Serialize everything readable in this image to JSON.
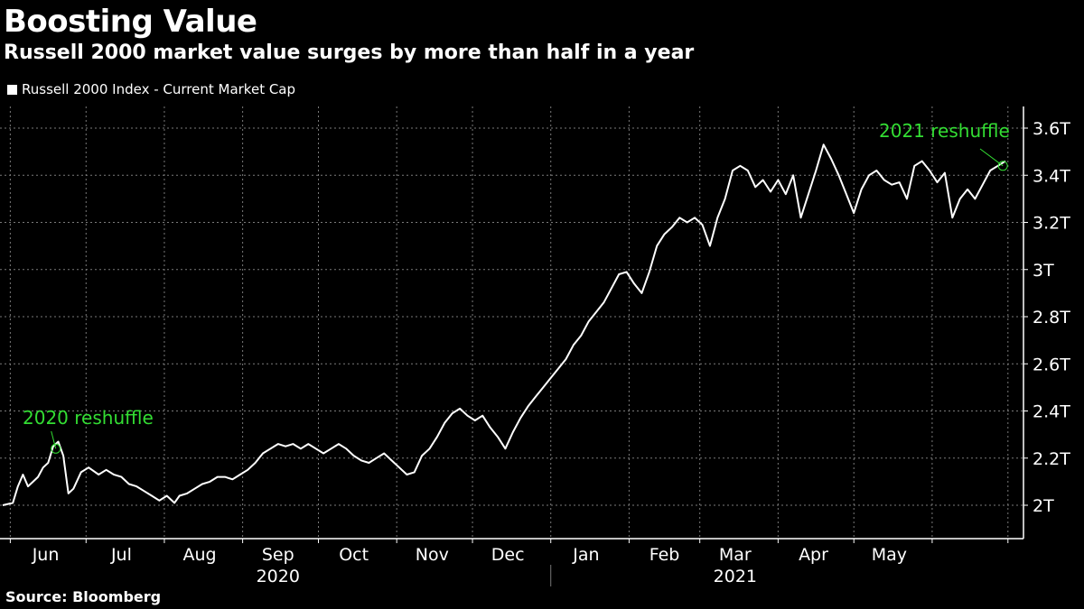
{
  "title": "Boosting Value",
  "subtitle": "Russell 2000 market value surges by more than half in a year",
  "source": "Source: Bloomberg",
  "colors": {
    "background": "#000000",
    "line": "#ffffff",
    "annotation": "#33dd33",
    "grid": "#7a7a7a"
  },
  "chart_data": {
    "type": "line",
    "title": "Boosting Value",
    "subtitle": "Russell 2000 market value surges by more than half in a year",
    "xlabel": "",
    "ylabel": "",
    "ylim": [
      1.95,
      3.65
    ],
    "y_ticks": [
      2.0,
      2.2,
      2.4,
      2.6,
      2.8,
      3.0,
      3.2,
      3.4,
      3.6
    ],
    "y_tick_labels": [
      "2T",
      "2.2T",
      "2.4T",
      "2.6T",
      "2.8T",
      "3T",
      "3.2T",
      "3.4T",
      "3.6T"
    ],
    "y_unit": "T",
    "x_ticks": [
      {
        "date": "2020-05-20",
        "label": "May"
      },
      {
        "date": "2020-06-15",
        "label": "Jun"
      },
      {
        "date": "2020-07-15",
        "label": "Jul"
      },
      {
        "date": "2020-08-15",
        "label": "Aug"
      },
      {
        "date": "2020-09-15",
        "label": "Sep"
      },
      {
        "date": "2020-10-15",
        "label": "Oct"
      },
      {
        "date": "2020-11-15",
        "label": "Nov"
      },
      {
        "date": "2020-12-15",
        "label": "Dec"
      },
      {
        "date": "2021-01-15",
        "label": "Jan"
      },
      {
        "date": "2021-02-15",
        "label": "Feb"
      },
      {
        "date": "2021-03-15",
        "label": "Mar"
      },
      {
        "date": "2021-04-15",
        "label": "Apr"
      },
      {
        "date": "2021-05-15",
        "label": "May"
      }
    ],
    "years": [
      {
        "label": "2020",
        "date": "2020-09-15"
      },
      {
        "label": "2021",
        "date": "2021-03-15"
      }
    ],
    "grid": true,
    "legend": "top-left",
    "series": [
      {
        "name": "Russell 2000 Index - Current Market Cap",
        "color": "#ffffff",
        "points": [
          [
            "2020-05-29",
            2.0
          ],
          [
            "2020-06-02",
            2.01
          ],
          [
            "2020-06-04",
            2.08
          ],
          [
            "2020-06-06",
            2.13
          ],
          [
            "2020-06-08",
            2.08
          ],
          [
            "2020-06-10",
            2.1
          ],
          [
            "2020-06-12",
            2.12
          ],
          [
            "2020-06-14",
            2.16
          ],
          [
            "2020-06-16",
            2.18
          ],
          [
            "2020-06-18",
            2.25
          ],
          [
            "2020-06-20",
            2.27
          ],
          [
            "2020-06-22",
            2.21
          ],
          [
            "2020-06-24",
            2.05
          ],
          [
            "2020-06-26",
            2.07
          ],
          [
            "2020-06-29",
            2.14
          ],
          [
            "2020-07-02",
            2.16
          ],
          [
            "2020-07-06",
            2.13
          ],
          [
            "2020-07-09",
            2.15
          ],
          [
            "2020-07-12",
            2.13
          ],
          [
            "2020-07-15",
            2.12
          ],
          [
            "2020-07-18",
            2.09
          ],
          [
            "2020-07-21",
            2.08
          ],
          [
            "2020-07-24",
            2.06
          ],
          [
            "2020-07-27",
            2.04
          ],
          [
            "2020-07-30",
            2.02
          ],
          [
            "2020-08-02",
            2.04
          ],
          [
            "2020-08-05",
            2.01
          ],
          [
            "2020-08-07",
            2.04
          ],
          [
            "2020-08-10",
            2.05
          ],
          [
            "2020-08-13",
            2.07
          ],
          [
            "2020-08-16",
            2.09
          ],
          [
            "2020-08-19",
            2.1
          ],
          [
            "2020-08-22",
            2.12
          ],
          [
            "2020-08-25",
            2.12
          ],
          [
            "2020-08-28",
            2.11
          ],
          [
            "2020-08-31",
            2.13
          ],
          [
            "2020-09-03",
            2.15
          ],
          [
            "2020-09-06",
            2.18
          ],
          [
            "2020-09-09",
            2.22
          ],
          [
            "2020-09-12",
            2.24
          ],
          [
            "2020-09-15",
            2.26
          ],
          [
            "2020-09-18",
            2.25
          ],
          [
            "2020-09-21",
            2.26
          ],
          [
            "2020-09-24",
            2.24
          ],
          [
            "2020-09-27",
            2.26
          ],
          [
            "2020-09-30",
            2.24
          ],
          [
            "2020-10-03",
            2.22
          ],
          [
            "2020-10-06",
            2.24
          ],
          [
            "2020-10-09",
            2.26
          ],
          [
            "2020-10-12",
            2.24
          ],
          [
            "2020-10-15",
            2.21
          ],
          [
            "2020-10-18",
            2.19
          ],
          [
            "2020-10-21",
            2.18
          ],
          [
            "2020-10-24",
            2.2
          ],
          [
            "2020-10-27",
            2.22
          ],
          [
            "2020-10-30",
            2.19
          ],
          [
            "2020-11-02",
            2.16
          ],
          [
            "2020-11-05",
            2.13
          ],
          [
            "2020-11-08",
            2.14
          ],
          [
            "2020-11-11",
            2.21
          ],
          [
            "2020-11-14",
            2.24
          ],
          [
            "2020-11-17",
            2.29
          ],
          [
            "2020-11-20",
            2.35
          ],
          [
            "2020-11-23",
            2.39
          ],
          [
            "2020-11-26",
            2.41
          ],
          [
            "2020-11-29",
            2.38
          ],
          [
            "2020-12-02",
            2.36
          ],
          [
            "2020-12-05",
            2.38
          ],
          [
            "2020-12-08",
            2.33
          ],
          [
            "2020-12-11",
            2.29
          ],
          [
            "2020-12-14",
            2.24
          ],
          [
            "2020-12-17",
            2.31
          ],
          [
            "2020-12-20",
            2.37
          ],
          [
            "2020-12-23",
            2.42
          ],
          [
            "2020-12-26",
            2.46
          ],
          [
            "2020-12-29",
            2.5
          ],
          [
            "2021-01-01",
            2.54
          ],
          [
            "2021-01-04",
            2.58
          ],
          [
            "2021-01-07",
            2.62
          ],
          [
            "2021-01-10",
            2.68
          ],
          [
            "2021-01-13",
            2.72
          ],
          [
            "2021-01-16",
            2.78
          ],
          [
            "2021-01-19",
            2.82
          ],
          [
            "2021-01-22",
            2.86
          ],
          [
            "2021-01-25",
            2.92
          ],
          [
            "2021-01-28",
            2.98
          ],
          [
            "2021-01-31",
            2.99
          ],
          [
            "2021-02-03",
            2.94
          ],
          [
            "2021-02-06",
            2.9
          ],
          [
            "2021-02-09",
            2.99
          ],
          [
            "2021-02-12",
            3.1
          ],
          [
            "2021-02-15",
            3.15
          ],
          [
            "2021-02-18",
            3.18
          ],
          [
            "2021-02-21",
            3.22
          ],
          [
            "2021-02-24",
            3.2
          ],
          [
            "2021-02-27",
            3.22
          ],
          [
            "2021-03-02",
            3.19
          ],
          [
            "2021-03-05",
            3.1
          ],
          [
            "2021-03-08",
            3.22
          ],
          [
            "2021-03-11",
            3.3
          ],
          [
            "2021-03-14",
            3.42
          ],
          [
            "2021-03-17",
            3.44
          ],
          [
            "2021-03-20",
            3.42
          ],
          [
            "2021-03-23",
            3.35
          ],
          [
            "2021-03-26",
            3.38
          ],
          [
            "2021-03-29",
            3.33
          ],
          [
            "2021-04-01",
            3.38
          ],
          [
            "2021-04-04",
            3.32
          ],
          [
            "2021-04-07",
            3.4
          ],
          [
            "2021-04-10",
            3.22
          ],
          [
            "2021-04-13",
            3.32
          ],
          [
            "2021-04-16",
            3.42
          ],
          [
            "2021-04-19",
            3.53
          ],
          [
            "2021-04-22",
            3.47
          ],
          [
            "2021-04-25",
            3.4
          ],
          [
            "2021-04-28",
            3.32
          ],
          [
            "2021-05-01",
            3.24
          ],
          [
            "2021-05-04",
            3.34
          ],
          [
            "2021-05-07",
            3.4
          ],
          [
            "2021-05-10",
            3.42
          ],
          [
            "2021-05-13",
            3.38
          ],
          [
            "2021-05-16",
            3.36
          ],
          [
            "2021-05-19",
            3.37
          ],
          [
            "2021-05-22",
            3.3
          ],
          [
            "2021-05-25",
            3.44
          ],
          [
            "2021-05-28",
            3.46
          ],
          [
            "2021-05-31",
            3.42
          ],
          [
            "2021-06-03",
            3.37
          ],
          [
            "2021-06-06",
            3.41
          ],
          [
            "2021-06-09",
            3.22
          ],
          [
            "2021-06-12",
            3.3
          ],
          [
            "2021-06-15",
            3.34
          ],
          [
            "2021-06-18",
            3.3
          ],
          [
            "2021-06-21",
            3.36
          ],
          [
            "2021-06-24",
            3.42
          ],
          [
            "2021-06-27",
            3.44
          ],
          [
            "2021-06-30",
            3.46
          ]
        ]
      }
    ],
    "annotations": [
      {
        "text": "2020 reshuffle",
        "date": "2020-06-19",
        "value": 2.24,
        "color": "#33dd33"
      },
      {
        "text": "2021 reshuffle",
        "date": "2021-06-29",
        "value": 3.44,
        "color": "#33dd33"
      }
    ]
  }
}
